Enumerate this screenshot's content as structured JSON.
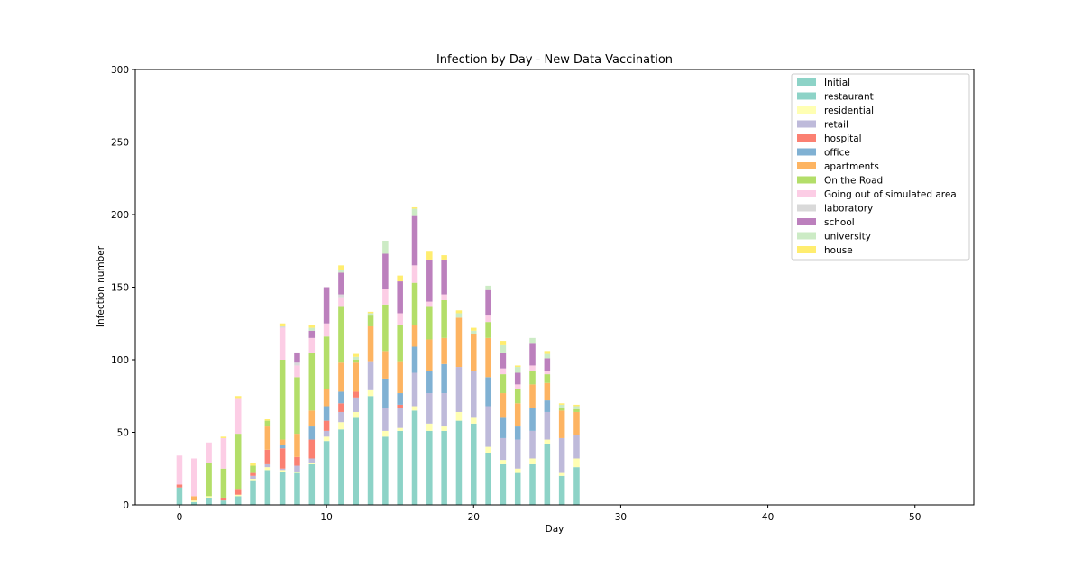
{
  "chart_data": {
    "type": "bar",
    "stacked": true,
    "title": "Infection by Day - New Data Vaccination",
    "xlabel": "Day",
    "ylabel": "Infection number",
    "xlim": [
      -3,
      54
    ],
    "ylim": [
      0,
      300
    ],
    "xticks": [
      0,
      10,
      20,
      30,
      40,
      50
    ],
    "yticks": [
      0,
      50,
      100,
      150,
      200,
      250,
      300
    ],
    "legend_position": "top-right",
    "grid": false,
    "x": [
      0,
      1,
      2,
      3,
      4,
      5,
      6,
      7,
      8,
      9,
      10,
      11,
      12,
      13,
      14,
      15,
      16,
      17,
      18,
      19,
      20,
      21,
      22,
      23,
      24,
      25,
      26,
      27
    ],
    "series": [
      {
        "name": "Initial",
        "color": "#8dd3c7",
        "values": [
          12,
          0,
          0,
          0,
          0,
          0,
          0,
          0,
          0,
          0,
          0,
          0,
          0,
          0,
          0,
          0,
          0,
          0,
          0,
          0,
          0,
          0,
          0,
          0,
          0,
          0,
          0,
          0
        ]
      },
      {
        "name": "restaurant",
        "color": "#8dd3c7",
        "values": [
          0,
          2,
          5,
          3,
          6,
          17,
          24,
          23,
          22,
          28,
          44,
          52,
          60,
          75,
          47,
          51,
          65,
          51,
          51,
          58,
          56,
          36,
          28,
          22,
          28,
          42,
          20,
          26
        ]
      },
      {
        "name": "residential",
        "color": "#ffffb3",
        "values": [
          0,
          1,
          1,
          0,
          1,
          1,
          2,
          1,
          1,
          1,
          3,
          5,
          4,
          4,
          4,
          2,
          3,
          5,
          3,
          6,
          4,
          4,
          3,
          3,
          4,
          3,
          2,
          6
        ]
      },
      {
        "name": "retail",
        "color": "#bebada",
        "values": [
          0,
          0,
          0,
          0,
          0,
          2,
          2,
          1,
          4,
          3,
          4,
          7,
          10,
          20,
          16,
          14,
          23,
          21,
          23,
          31,
          32,
          28,
          15,
          20,
          19,
          19,
          24,
          16
        ]
      },
      {
        "name": "hospital",
        "color": "#fb8072",
        "values": [
          2,
          0,
          0,
          2,
          4,
          2,
          10,
          14,
          6,
          13,
          7,
          6,
          4,
          0,
          0,
          2,
          0,
          0,
          0,
          0,
          0,
          0,
          0,
          0,
          0,
          0,
          0,
          0
        ]
      },
      {
        "name": "office",
        "color": "#80b1d3",
        "values": [
          0,
          0,
          0,
          0,
          0,
          0,
          0,
          2,
          0,
          9,
          10,
          8,
          0,
          0,
          20,
          8,
          18,
          15,
          20,
          0,
          0,
          20,
          14,
          9,
          16,
          8,
          0,
          0
        ]
      },
      {
        "name": "apartments",
        "color": "#fdb462",
        "values": [
          0,
          3,
          0,
          0,
          0,
          0,
          16,
          4,
          16,
          11,
          12,
          20,
          20,
          24,
          19,
          22,
          15,
          22,
          18,
          34,
          26,
          27,
          17,
          16,
          16,
          12,
          19,
          16
        ]
      },
      {
        "name": "On the Road",
        "color": "#b3de69",
        "values": [
          0,
          0,
          23,
          20,
          38,
          5,
          4,
          55,
          39,
          40,
          36,
          39,
          2,
          8,
          32,
          25,
          29,
          23,
          26,
          0,
          0,
          11,
          13,
          10,
          9,
          6,
          2,
          2
        ]
      },
      {
        "name": "Going out of simulated area",
        "color": "#fccde5",
        "values": [
          20,
          26,
          14,
          21,
          24,
          0,
          0,
          22,
          8,
          10,
          9,
          6,
          0,
          0,
          11,
          8,
          12,
          3,
          4,
          0,
          0,
          5,
          4,
          3,
          4,
          2,
          0,
          0
        ]
      },
      {
        "name": "laboratory",
        "color": "#d9d9d9",
        "values": [
          0,
          0,
          0,
          0,
          0,
          0,
          0,
          1,
          2,
          0,
          0,
          2,
          0,
          0,
          0,
          0,
          0,
          0,
          0,
          0,
          0,
          0,
          0,
          0,
          0,
          0,
          0,
          0
        ]
      },
      {
        "name": "school",
        "color": "#bc80bd",
        "values": [
          0,
          0,
          0,
          0,
          0,
          0,
          0,
          0,
          7,
          5,
          25,
          15,
          0,
          0,
          24,
          22,
          34,
          29,
          24,
          0,
          0,
          17,
          11,
          8,
          15,
          9,
          0,
          0
        ]
      },
      {
        "name": "university",
        "color": "#ccebc5",
        "values": [
          0,
          0,
          0,
          0,
          0,
          0,
          0,
          0,
          0,
          2,
          0,
          2,
          2,
          1,
          9,
          0,
          5,
          0,
          0,
          3,
          2,
          3,
          5,
          4,
          4,
          3,
          2,
          2
        ]
      },
      {
        "name": "house",
        "color": "#ffed6f",
        "values": [
          0,
          0,
          0,
          1,
          2,
          2,
          1,
          2,
          0,
          2,
          0,
          3,
          2,
          1,
          0,
          4,
          1,
          6,
          3,
          2,
          2,
          0,
          3,
          1,
          0,
          2,
          1,
          1
        ]
      }
    ]
  }
}
